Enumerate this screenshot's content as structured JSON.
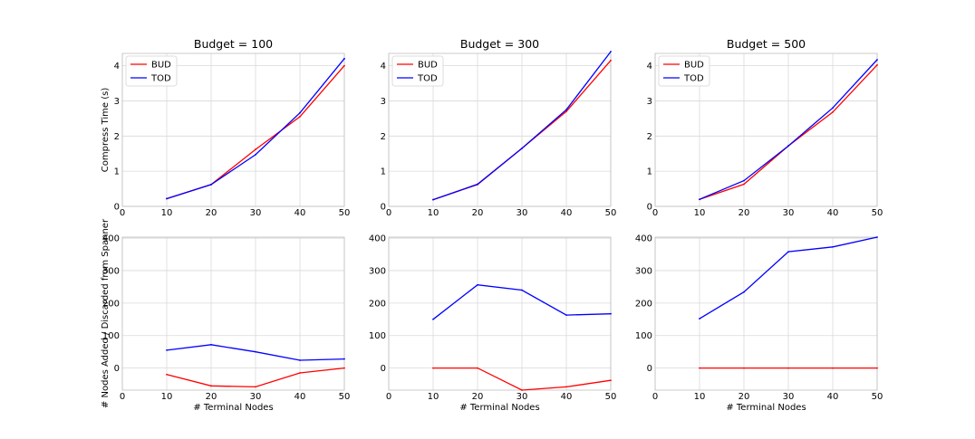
{
  "figure": {
    "xlabel": "# Terminal Nodes"
  },
  "chart_data": [
    {
      "type": "line",
      "row": "top",
      "col": 0,
      "title": "Budget = 100",
      "xlabel": "",
      "ylabel": "Compress Time (s)",
      "xlim": [
        0,
        50
      ],
      "ylim": [
        0,
        4.35
      ],
      "xticks": [
        0,
        10,
        20,
        30,
        40,
        50
      ],
      "yticks": [
        0,
        1,
        2,
        3,
        4
      ],
      "grid": true,
      "legend": "top-left",
      "series": [
        {
          "name": "BUD",
          "color": "#ff0000",
          "x": [
            10,
            20,
            30,
            40,
            50
          ],
          "y": [
            0.22,
            0.62,
            1.62,
            2.55,
            4.0
          ]
        },
        {
          "name": "TOD",
          "color": "#0000ff",
          "x": [
            10,
            20,
            30,
            40,
            50
          ],
          "y": [
            0.22,
            0.62,
            1.47,
            2.66,
            4.2
          ]
        }
      ]
    },
    {
      "type": "line",
      "row": "top",
      "col": 1,
      "title": "Budget = 300",
      "xlabel": "",
      "ylabel": "",
      "xlim": [
        0,
        50
      ],
      "ylim": [
        0,
        4.35
      ],
      "xticks": [
        0,
        10,
        20,
        30,
        40,
        50
      ],
      "yticks": [
        0,
        1,
        2,
        3,
        4
      ],
      "grid": true,
      "legend": "top-left",
      "series": [
        {
          "name": "BUD",
          "color": "#ff0000",
          "x": [
            10,
            20,
            30,
            40,
            50
          ],
          "y": [
            0.19,
            0.62,
            1.65,
            2.7,
            4.15
          ]
        },
        {
          "name": "TOD",
          "color": "#0000ff",
          "x": [
            10,
            20,
            30,
            40,
            50
          ],
          "y": [
            0.19,
            0.63,
            1.65,
            2.75,
            4.4
          ]
        }
      ]
    },
    {
      "type": "line",
      "row": "top",
      "col": 2,
      "title": "Budget = 500",
      "xlabel": "",
      "ylabel": "",
      "xlim": [
        0,
        50
      ],
      "ylim": [
        0,
        4.35
      ],
      "xticks": [
        0,
        10,
        20,
        30,
        40,
        50
      ],
      "yticks": [
        0,
        1,
        2,
        3,
        4
      ],
      "grid": true,
      "legend": "top-left",
      "series": [
        {
          "name": "BUD",
          "color": "#ff0000",
          "x": [
            10,
            20,
            30,
            40,
            50
          ],
          "y": [
            0.2,
            0.63,
            1.72,
            2.68,
            4.02
          ]
        },
        {
          "name": "TOD",
          "color": "#0000ff",
          "x": [
            10,
            20,
            30,
            40,
            50
          ],
          "y": [
            0.2,
            0.73,
            1.72,
            2.8,
            4.17
          ]
        }
      ]
    },
    {
      "type": "line",
      "row": "bottom",
      "col": 0,
      "title": "",
      "xlabel": "# Terminal Nodes",
      "ylabel": "# Nodes Added / Discarded from Spanner",
      "xlim": [
        0,
        50
      ],
      "ylim": [
        -68,
        403
      ],
      "xticks": [
        0,
        10,
        20,
        30,
        40,
        50
      ],
      "yticks": [
        0,
        100,
        200,
        300,
        400
      ],
      "grid": true,
      "legend": "none",
      "series": [
        {
          "name": "BUD",
          "color": "#ff0000",
          "x": [
            10,
            20,
            30,
            40,
            50
          ],
          "y": [
            -20,
            -55,
            -58,
            -15,
            0
          ]
        },
        {
          "name": "TOD",
          "color": "#0000ff",
          "x": [
            10,
            20,
            30,
            40,
            50
          ],
          "y": [
            55,
            72,
            50,
            24,
            28
          ]
        }
      ]
    },
    {
      "type": "line",
      "row": "bottom",
      "col": 1,
      "title": "",
      "xlabel": "# Terminal Nodes",
      "ylabel": "",
      "xlim": [
        0,
        50
      ],
      "ylim": [
        -68,
        403
      ],
      "xticks": [
        0,
        10,
        20,
        30,
        40,
        50
      ],
      "yticks": [
        0,
        100,
        200,
        300,
        400
      ],
      "grid": true,
      "legend": "none",
      "series": [
        {
          "name": "BUD",
          "color": "#ff0000",
          "x": [
            10,
            20,
            30,
            40,
            50
          ],
          "y": [
            0,
            0,
            -68,
            -58,
            -38
          ]
        },
        {
          "name": "TOD",
          "color": "#0000ff",
          "x": [
            10,
            20,
            30,
            40,
            50
          ],
          "y": [
            150,
            256,
            240,
            163,
            167
          ]
        }
      ]
    },
    {
      "type": "line",
      "row": "bottom",
      "col": 2,
      "title": "",
      "xlabel": "# Terminal Nodes",
      "ylabel": "",
      "xlim": [
        0,
        50
      ],
      "ylim": [
        -68,
        403
      ],
      "xticks": [
        0,
        10,
        20,
        30,
        40,
        50
      ],
      "yticks": [
        0,
        100,
        200,
        300,
        400
      ],
      "grid": true,
      "legend": "none",
      "series": [
        {
          "name": "BUD",
          "color": "#ff0000",
          "x": [
            10,
            20,
            30,
            40,
            50
          ],
          "y": [
            0,
            0,
            0,
            0,
            0
          ]
        },
        {
          "name": "TOD",
          "color": "#0000ff",
          "x": [
            10,
            20,
            30,
            40,
            50
          ],
          "y": [
            152,
            234,
            358,
            373,
            403
          ]
        }
      ]
    }
  ]
}
